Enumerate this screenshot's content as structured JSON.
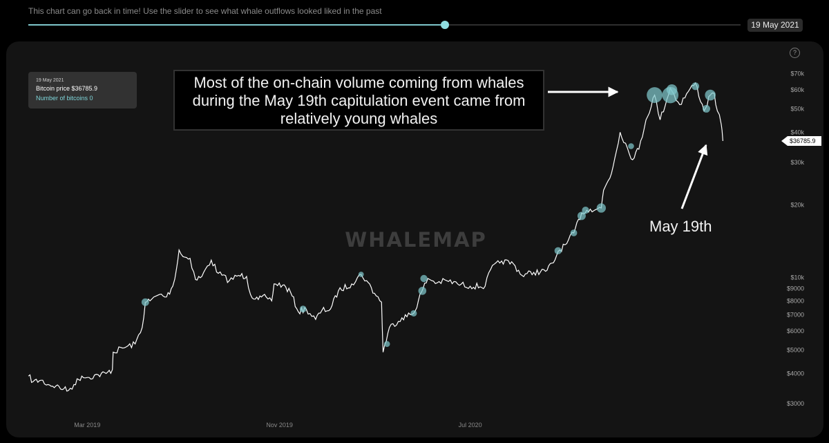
{
  "header": {
    "description": "This chart can go back in time! Use the slider to see what whale outflows looked liked in the past",
    "slider_position": 0.585,
    "selected_date": "19 May 2021"
  },
  "tooltip": {
    "date": "19 May 2021",
    "price_label": "Bitcoin price $36785.9",
    "count_label": "Number of bitcoins 0"
  },
  "help_icon": "?",
  "watermark": "WHALEMAP",
  "annotation": {
    "lines": [
      "Most of the on-chain volume coming from whales",
      "during the May 19th capitulation event came from",
      "relatively young whales"
    ],
    "may_label": "May 19th"
  },
  "colors": {
    "line": "#ffffff",
    "bubble": "#7fc8cc",
    "panel": "#141414",
    "accent": "#8fdde0"
  },
  "chart_data": {
    "type": "line",
    "y_scale": "log",
    "ylim": [
      2700,
      78000
    ],
    "xlim": [
      "2018-12-15",
      "2021-05-31"
    ],
    "y_ticks": [
      {
        "value": 3000,
        "label": "$3000"
      },
      {
        "value": 4000,
        "label": "$4000"
      },
      {
        "value": 5000,
        "label": "$5000"
      },
      {
        "value": 6000,
        "label": "$6000"
      },
      {
        "value": 7000,
        "label": "$7000"
      },
      {
        "value": 8000,
        "label": "$8000"
      },
      {
        "value": 9000,
        "label": "$9000"
      },
      {
        "value": 10000,
        "label": "$10k"
      },
      {
        "value": 20000,
        "label": "$20k"
      },
      {
        "value": 30000,
        "label": "$30k"
      },
      {
        "value": 40000,
        "label": "$40k"
      },
      {
        "value": 50000,
        "label": "$50k"
      },
      {
        "value": 60000,
        "label": "$60k"
      },
      {
        "value": 70000,
        "label": "$70k"
      }
    ],
    "x_ticks": [
      {
        "date": "2019-03-01",
        "label": "Mar 2019"
      },
      {
        "date": "2019-11-01",
        "label": "Nov 2019"
      },
      {
        "date": "2020-07-01",
        "label": "Jul 2020"
      }
    ],
    "current_price_label": "$36785.9",
    "current_price": 36785.9,
    "series": [
      {
        "points": [
          [
            "2018-12-16",
            3900
          ],
          [
            "2018-12-22",
            3700
          ],
          [
            "2019-01-01",
            3750
          ],
          [
            "2019-01-10",
            3600
          ],
          [
            "2019-01-20",
            3550
          ],
          [
            "2019-01-30",
            3450
          ],
          [
            "2019-02-05",
            3400
          ],
          [
            "2019-02-12",
            3600
          ],
          [
            "2019-02-22",
            3900
          ],
          [
            "2019-03-01",
            3850
          ],
          [
            "2019-03-15",
            3950
          ],
          [
            "2019-03-25",
            4000
          ],
          [
            "2019-04-02",
            4150
          ],
          [
            "2019-04-03",
            4900
          ],
          [
            "2019-04-15",
            5100
          ],
          [
            "2019-05-01",
            5300
          ],
          [
            "2019-05-10",
            6200
          ],
          [
            "2019-05-14",
            7900
          ],
          [
            "2019-05-20",
            8000
          ],
          [
            "2019-06-01",
            8500
          ],
          [
            "2019-06-10",
            8300
          ],
          [
            "2019-06-18",
            9200
          ],
          [
            "2019-06-23",
            11000
          ],
          [
            "2019-06-26",
            13000
          ],
          [
            "2019-07-01",
            12200
          ],
          [
            "2019-07-10",
            12000
          ],
          [
            "2019-07-17",
            9800
          ],
          [
            "2019-07-25",
            10100
          ],
          [
            "2019-08-06",
            11800
          ],
          [
            "2019-08-15",
            10400
          ],
          [
            "2019-08-29",
            9700
          ],
          [
            "2019-09-10",
            10200
          ],
          [
            "2019-09-20",
            10100
          ],
          [
            "2019-09-25",
            8500
          ],
          [
            "2019-10-05",
            8100
          ],
          [
            "2019-10-15",
            8300
          ],
          [
            "2019-10-22",
            8000
          ],
          [
            "2019-10-25",
            9400
          ],
          [
            "2019-11-05",
            9300
          ],
          [
            "2019-11-15",
            8700
          ],
          [
            "2019-11-25",
            7200
          ],
          [
            "2019-12-05",
            7400
          ],
          [
            "2019-12-17",
            6700
          ],
          [
            "2019-12-25",
            7300
          ],
          [
            "2020-01-05",
            7400
          ],
          [
            "2020-01-15",
            8800
          ],
          [
            "2020-02-01",
            9400
          ],
          [
            "2020-02-13",
            10300
          ],
          [
            "2020-02-20",
            9700
          ],
          [
            "2020-03-01",
            8600
          ],
          [
            "2020-03-10",
            7900
          ],
          [
            "2020-03-12",
            4900
          ],
          [
            "2020-03-20",
            6200
          ],
          [
            "2020-04-05",
            6800
          ],
          [
            "2020-04-20",
            7100
          ],
          [
            "2020-04-30",
            8700
          ],
          [
            "2020-05-08",
            9900
          ],
          [
            "2020-05-20",
            9500
          ],
          [
            "2020-06-01",
            9700
          ],
          [
            "2020-06-15",
            9400
          ],
          [
            "2020-07-01",
            9200
          ],
          [
            "2020-07-20",
            9200
          ],
          [
            "2020-07-27",
            10800
          ],
          [
            "2020-08-10",
            11700
          ],
          [
            "2020-08-25",
            11400
          ],
          [
            "2020-09-05",
            10200
          ],
          [
            "2020-09-20",
            10500
          ],
          [
            "2020-10-05",
            10600
          ],
          [
            "2020-10-15",
            11500
          ],
          [
            "2020-10-21",
            12800
          ],
          [
            "2020-11-01",
            13800
          ],
          [
            "2020-11-10",
            15300
          ],
          [
            "2020-11-20",
            18500
          ],
          [
            "2020-12-01",
            19200
          ],
          [
            "2020-12-15",
            19400
          ],
          [
            "2020-12-18",
            23000
          ],
          [
            "2020-12-28",
            27000
          ],
          [
            "2021-01-08",
            40000
          ],
          [
            "2021-01-15",
            36000
          ],
          [
            "2021-01-22",
            31000
          ],
          [
            "2021-02-01",
            34000
          ],
          [
            "2021-02-10",
            45000
          ],
          [
            "2021-02-21",
            57000
          ],
          [
            "2021-02-28",
            45000
          ],
          [
            "2021-03-13",
            61000
          ],
          [
            "2021-03-25",
            52000
          ],
          [
            "2021-04-05",
            59000
          ],
          [
            "2021-04-14",
            64000
          ],
          [
            "2021-04-25",
            49000
          ],
          [
            "2021-05-03",
            57000
          ],
          [
            "2021-05-08",
            58000
          ],
          [
            "2021-05-12",
            49000
          ],
          [
            "2021-05-17",
            43000
          ],
          [
            "2021-05-19",
            36785.9
          ]
        ]
      }
    ],
    "bubbles": [
      {
        "date": "2019-05-14",
        "price": 7900,
        "size": 1
      },
      {
        "date": "2019-12-01",
        "price": 7400,
        "size": 0.8
      },
      {
        "date": "2020-02-13",
        "price": 10300,
        "size": 0.5
      },
      {
        "date": "2020-03-17",
        "price": 5300,
        "size": 0.6
      },
      {
        "date": "2020-04-20",
        "price": 7100,
        "size": 0.7
      },
      {
        "date": "2020-05-01",
        "price": 8800,
        "size": 1.1
      },
      {
        "date": "2020-05-03",
        "price": 9900,
        "size": 0.9
      },
      {
        "date": "2020-10-21",
        "price": 12900,
        "size": 0.9
      },
      {
        "date": "2020-11-10",
        "price": 15300,
        "size": 0.8
      },
      {
        "date": "2020-11-20",
        "price": 18000,
        "size": 1.2
      },
      {
        "date": "2020-11-25",
        "price": 19000,
        "size": 0.9
      },
      {
        "date": "2020-12-15",
        "price": 19400,
        "size": 1.5
      },
      {
        "date": "2021-01-22",
        "price": 35000,
        "size": 0.6
      },
      {
        "date": "2021-02-21",
        "price": 57000,
        "size": 4.3
      },
      {
        "date": "2021-03-13",
        "price": 57000,
        "size": 4.6
      },
      {
        "date": "2021-03-15",
        "price": 60000,
        "size": 2.0
      },
      {
        "date": "2021-04-14",
        "price": 62000,
        "size": 1.0
      },
      {
        "date": "2021-04-28",
        "price": 50000,
        "size": 1.0
      },
      {
        "date": "2021-05-03",
        "price": 57000,
        "size": 2.0
      }
    ]
  }
}
